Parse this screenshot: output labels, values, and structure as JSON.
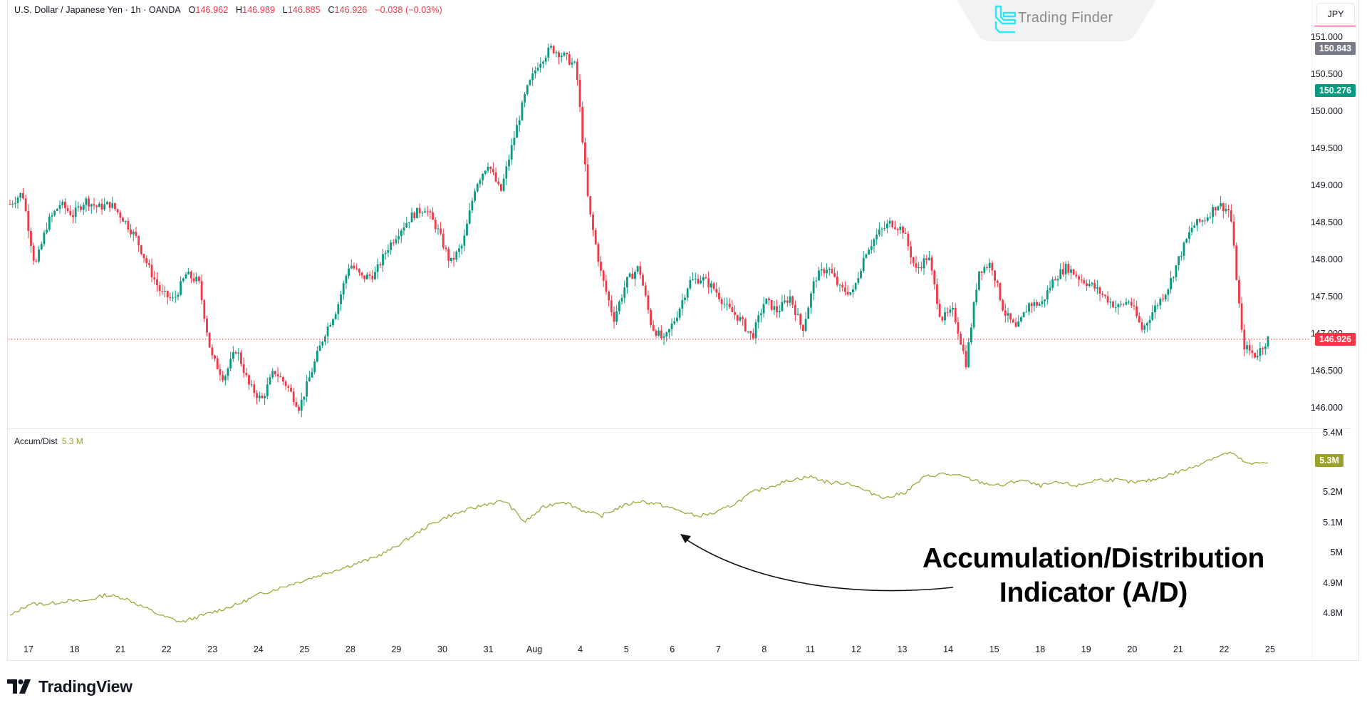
{
  "header": {
    "symbol": "U.S. Dollar / Japanese Yen · 1h · OANDA",
    "open_label": "O",
    "open": "146.962",
    "high_label": "H",
    "high": "146.989",
    "low_label": "L",
    "low": "146.885",
    "close_label": "C",
    "close": "146.926",
    "change": "−0.038 (−0.03%)"
  },
  "watermark": {
    "brand": "Trading Finder",
    "icon": "trading-finder-logo-icon"
  },
  "price_axis": {
    "currency": "JPY",
    "ticks": [
      "151.000",
      "150.500",
      "150.000",
      "149.500",
      "149.000",
      "148.500",
      "148.000",
      "147.500",
      "147.000",
      "146.500",
      "146.000"
    ],
    "badges": [
      {
        "value": "150.843",
        "color": "#787b86"
      },
      {
        "value": "150.276",
        "color": "#089981"
      },
      {
        "value": "146.926",
        "color": "#f23645"
      }
    ]
  },
  "indicator": {
    "name": "Accum/Dist",
    "value": "5.3 M",
    "badge": "5.3M",
    "color": "#9aa22a",
    "ticks": [
      "5.4M",
      "5.3M",
      "5.2M",
      "5.1M",
      "5M",
      "4.9M",
      "4.8M"
    ]
  },
  "time_axis": {
    "labels": [
      "17",
      "18",
      "21",
      "22",
      "23",
      "24",
      "25",
      "28",
      "29",
      "30",
      "31",
      "Aug",
      "4",
      "5",
      "6",
      "7",
      "8",
      "11",
      "12",
      "13",
      "14",
      "15",
      "18",
      "19",
      "20",
      "21",
      "22",
      "25"
    ]
  },
  "annotation": {
    "line1": "Accumulation/Distribution",
    "line2": "Indicator (A/D)"
  },
  "footer": {
    "brand": "TradingView"
  },
  "colors": {
    "up": "#089981",
    "down": "#f23645",
    "ad_line": "#9aa22a",
    "last_price_line": "#f23645"
  },
  "chart_data": [
    {
      "type": "candlestick",
      "title": "U.S. Dollar / Japanese Yen · 1h · OANDA",
      "ylabel": "JPY",
      "ylim": [
        145.8,
        151.1
      ],
      "categories": [
        "17",
        "18",
        "21",
        "22",
        "23",
        "24",
        "25",
        "28",
        "29",
        "30",
        "31",
        "Aug",
        "4",
        "5",
        "6",
        "7",
        "8",
        "11",
        "12",
        "13",
        "14",
        "15",
        "18",
        "19",
        "20",
        "21",
        "22",
        "25"
      ],
      "approx_close_path": [
        148.75,
        148.9,
        147.9,
        148.5,
        148.75,
        148.6,
        148.8,
        148.7,
        148.75,
        148.55,
        148.3,
        147.9,
        147.55,
        147.45,
        147.8,
        147.7,
        146.7,
        146.4,
        146.8,
        146.3,
        146.1,
        146.5,
        146.3,
        146.0,
        146.5,
        147.0,
        147.35,
        147.95,
        147.75,
        147.8,
        148.15,
        148.4,
        148.6,
        148.7,
        148.4,
        147.95,
        148.2,
        149.0,
        149.3,
        148.9,
        149.6,
        150.25,
        150.65,
        150.85,
        150.75,
        150.6,
        148.7,
        147.8,
        147.2,
        147.7,
        147.9,
        147.1,
        146.9,
        147.25,
        147.7,
        147.75,
        147.6,
        147.35,
        147.2,
        146.95,
        147.45,
        147.3,
        147.5,
        147.05,
        147.75,
        147.9,
        147.6,
        147.55,
        148.1,
        148.35,
        148.5,
        148.4,
        147.85,
        148.05,
        147.2,
        147.3,
        146.6,
        147.85,
        147.95,
        147.3,
        147.05,
        147.4,
        147.4,
        147.75,
        147.9,
        147.75,
        147.65,
        147.5,
        147.35,
        147.45,
        147.05,
        147.35,
        147.6,
        148.05,
        148.45,
        148.55,
        148.75,
        148.65,
        146.85,
        146.7,
        146.93
      ],
      "last_price": 146.926,
      "high_label": 150.843,
      "marked_level": 150.276
    },
    {
      "type": "line",
      "title": "Accum/Dist",
      "ylabel": "",
      "ylim": [
        4.75,
        5.42
      ],
      "series": [
        {
          "name": "Accum/Dist",
          "values": [
            4.79,
            4.83,
            4.83,
            4.84,
            4.84,
            4.86,
            4.85,
            4.82,
            4.79,
            4.77,
            4.79,
            4.81,
            4.83,
            4.86,
            4.88,
            4.9,
            4.92,
            4.94,
            4.96,
            4.98,
            5.01,
            5.05,
            5.09,
            5.12,
            5.14,
            5.16,
            5.17,
            5.1,
            5.15,
            5.17,
            5.14,
            5.12,
            5.15,
            5.17,
            5.16,
            5.14,
            5.12,
            5.13,
            5.16,
            5.2,
            5.22,
            5.24,
            5.25,
            5.23,
            5.23,
            5.2,
            5.18,
            5.2,
            5.25,
            5.26,
            5.25,
            5.23,
            5.22,
            5.24,
            5.22,
            5.23,
            5.22,
            5.24,
            5.24,
            5.23,
            5.24,
            5.26,
            5.28,
            5.31,
            5.33,
            5.29,
            5.3
          ]
        }
      ],
      "last_value": "5.3M"
    }
  ]
}
